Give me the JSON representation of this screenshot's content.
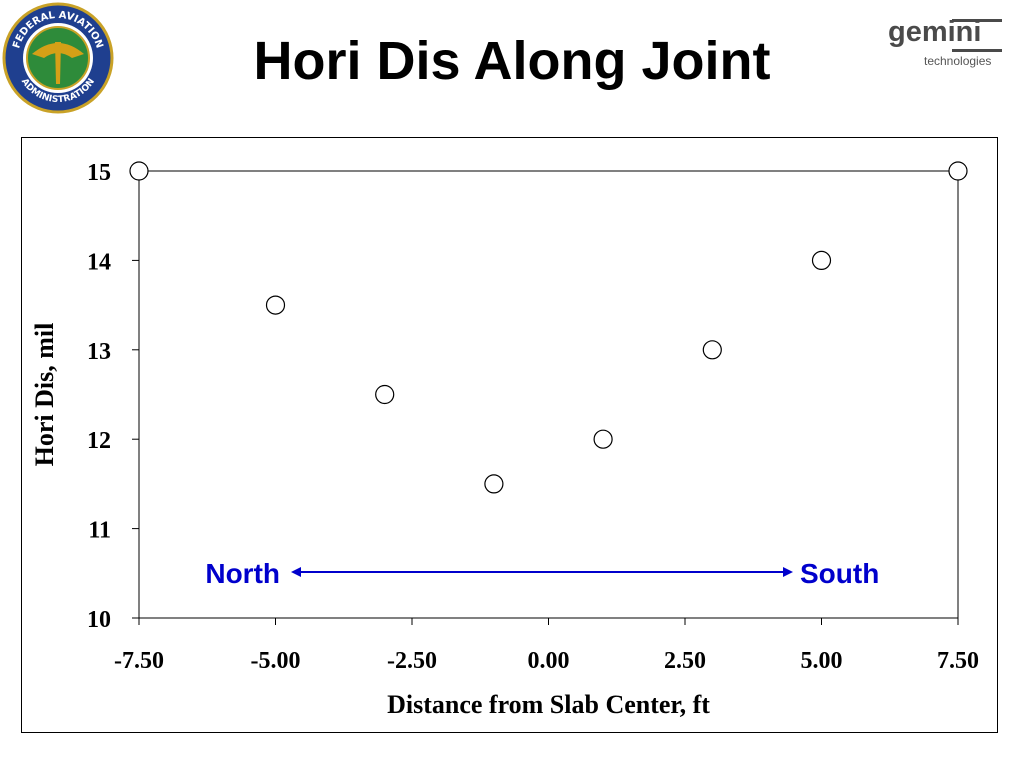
{
  "slide": {
    "title": "Hori Dis Along Joint"
  },
  "logos": {
    "left": {
      "icon": "faa-seal-icon",
      "ring_text_top": "FEDERAL AVIATION",
      "ring_text_bottom": "ADMINISTRATION"
    },
    "right": {
      "icon": "gemini-logo-icon",
      "name": "gemini",
      "tagline": "technologies"
    }
  },
  "chart_data": {
    "type": "scatter",
    "xlabel": "Distance from Slab Center, ft",
    "ylabel": "Hori Dis, mil",
    "xlim": [
      -7.5,
      7.5
    ],
    "ylim": [
      10,
      15
    ],
    "xticks": [
      "-7.50",
      "-5.00",
      "-2.50",
      "0.00",
      "2.50",
      "5.00",
      "7.50"
    ],
    "xtick_values": [
      -7.5,
      -5,
      -2.5,
      0,
      2.5,
      5,
      7.5
    ],
    "yticks": [
      "10",
      "11",
      "12",
      "13",
      "14",
      "15"
    ],
    "ytick_values": [
      10,
      11,
      12,
      13,
      14,
      15
    ],
    "grid": false,
    "marker": "open-circle",
    "series": [
      {
        "x": [
          -7.5,
          -5,
          -3,
          -1,
          1,
          3,
          5,
          7.5
        ],
        "y": [
          15,
          13.5,
          12.5,
          11.5,
          12,
          13,
          14,
          15
        ]
      }
    ],
    "annotations": [
      {
        "text": "North",
        "color": "#0000cc"
      },
      {
        "text": "South",
        "color": "#0000cc"
      }
    ],
    "arrow": {
      "type": "double-headed",
      "color": "#0000cc"
    }
  },
  "colors": {
    "annotation": "#0000cc",
    "markers": "#000000"
  }
}
